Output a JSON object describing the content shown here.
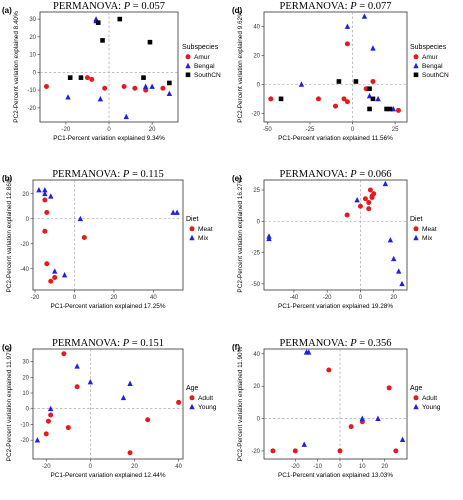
{
  "colors": {
    "red": "#e41a1c",
    "blue": "#1f1fe6",
    "black": "#000000"
  },
  "chart_data": [
    {
      "panel": "(a)",
      "type": "scatter",
      "title_prefix": "PERMANOVA: ",
      "title_p": "P",
      "title_value": " = 0.057",
      "xlabel": "PC1-Percent variation explained 9.34%",
      "ylabel": "PC2-Percent variation explained 8.40%",
      "xlim": [
        -32,
        32
      ],
      "ylim": [
        -28,
        34
      ],
      "xticks": [
        -20,
        0,
        20
      ],
      "yticks": [
        -20,
        -10,
        0,
        10,
        20,
        30
      ],
      "legend": {
        "title": "Subspecies",
        "position": "right"
      },
      "series": [
        {
          "name": "Amur",
          "marker": "circle",
          "color": "red",
          "points": [
            [
              -29,
              -8
            ],
            [
              -10,
              -3
            ],
            [
              -8,
              -4
            ],
            [
              -2,
              -9
            ],
            [
              7,
              -8
            ],
            [
              12,
              -9
            ],
            [
              17,
              -10
            ],
            [
              25,
              -9
            ]
          ]
        },
        {
          "name": "Bengal",
          "marker": "triangle",
          "color": "blue",
          "points": [
            [
              -19,
              -14
            ],
            [
              -6,
              29
            ],
            [
              -6,
              30
            ],
            [
              -4,
              -15
            ],
            [
              8,
              -25
            ],
            [
              17,
              -8
            ],
            [
              20,
              -8
            ],
            [
              28,
              -12
            ]
          ]
        },
        {
          "name": "SouthCN",
          "marker": "square",
          "color": "black",
          "points": [
            [
              -18,
              -3
            ],
            [
              -13,
              -3
            ],
            [
              -5,
              28
            ],
            [
              -3,
              18
            ],
            [
              5,
              30
            ],
            [
              16,
              -3
            ],
            [
              19,
              17
            ],
            [
              28,
              -6
            ]
          ]
        }
      ]
    },
    {
      "panel": "(d)",
      "type": "scatter",
      "title_prefix": "PERMANOVA: ",
      "title_p": "P",
      "title_value": " = 0.077",
      "xlabel": "PC1-Percent variation explained 11.56%",
      "ylabel": "PC2-Percent variation explained 9.62%",
      "xlim": [
        -52,
        32
      ],
      "ylim": [
        -26,
        50
      ],
      "xticks": [
        -50,
        -25,
        0,
        25
      ],
      "yticks": [
        -20,
        0,
        20,
        40
      ],
      "legend": {
        "title": "Subspecies",
        "position": "right"
      },
      "series": [
        {
          "name": "Amur",
          "marker": "circle",
          "color": "red",
          "points": [
            [
              -48,
              -10
            ],
            [
              -20,
              -10
            ],
            [
              -10,
              -15
            ],
            [
              -5,
              -10
            ],
            [
              -3,
              28
            ],
            [
              -3,
              -12
            ],
            [
              8,
              -3
            ],
            [
              12,
              2
            ],
            [
              27,
              -18
            ]
          ]
        },
        {
          "name": "Bengal",
          "marker": "triangle",
          "color": "blue",
          "points": [
            [
              -30,
              0
            ],
            [
              -3,
              40
            ],
            [
              7,
              47
            ],
            [
              10,
              -8
            ],
            [
              12,
              25
            ],
            [
              15,
              -10
            ],
            [
              24,
              -17
            ]
          ]
        },
        {
          "name": "SouthCN",
          "marker": "square",
          "color": "black",
          "points": [
            [
              -42,
              -10
            ],
            [
              -8,
              2
            ],
            [
              2,
              2
            ],
            [
              10,
              -17
            ],
            [
              10,
              -3
            ],
            [
              12,
              -10
            ],
            [
              20,
              -17
            ],
            [
              22,
              -17
            ]
          ]
        }
      ]
    },
    {
      "panel": "(b)",
      "type": "scatter",
      "title_prefix": "PERMANOVA: ",
      "title_p": "P",
      "title_value": " = 0.115",
      "xlabel": "PC1-Percent variation explained 17.25%",
      "ylabel": "PC2-Percent variation explained 12.86%",
      "xlim": [
        -21,
        55
      ],
      "ylim": [
        -57,
        31
      ],
      "xticks": [
        -20,
        0,
        20,
        40
      ],
      "yticks": [
        -40,
        -20,
        0,
        20
      ],
      "legend": {
        "title": "Diet",
        "position": "right"
      },
      "series": [
        {
          "name": "Meat",
          "marker": "circle",
          "color": "red",
          "points": [
            [
              -15,
              15
            ],
            [
              -15,
              -10
            ],
            [
              -14,
              -36
            ],
            [
              -14,
              5
            ],
            [
              -12,
              -50
            ],
            [
              -10,
              -47
            ],
            [
              5,
              -15
            ]
          ]
        },
        {
          "name": "Mix",
          "marker": "triangle",
          "color": "blue",
          "points": [
            [
              -18,
              23
            ],
            [
              -15,
              23
            ],
            [
              -15,
              20
            ],
            [
              -12,
              18
            ],
            [
              -10,
              -42
            ],
            [
              -5,
              -45
            ],
            [
              3,
              0
            ],
            [
              50,
              5
            ],
            [
              52,
              5
            ]
          ]
        }
      ]
    },
    {
      "panel": "(e)",
      "type": "scatter",
      "title_prefix": "PERMANOVA: ",
      "title_p": "P",
      "title_value": " = 0.066",
      "xlabel": "PC1-Percent variation explained 19.28%",
      "ylabel": "PC2-Percent variation explained 16.27%",
      "xlim": [
        -58,
        28
      ],
      "ylim": [
        -55,
        33
      ],
      "xticks": [
        -40,
        -20,
        0,
        20
      ],
      "yticks": [
        -50,
        -25,
        0,
        25
      ],
      "legend": {
        "title": "Diet",
        "position": "right"
      },
      "series": [
        {
          "name": "Meat",
          "marker": "circle",
          "color": "red",
          "points": [
            [
              -8,
              5
            ],
            [
              0,
              12
            ],
            [
              3,
              18
            ],
            [
              5,
              10
            ],
            [
              5,
              15
            ],
            [
              6,
              25
            ],
            [
              7,
              19
            ],
            [
              7,
              20
            ],
            [
              8,
              22
            ]
          ]
        },
        {
          "name": "Mix",
          "marker": "triangle",
          "color": "blue",
          "points": [
            [
              -55,
              -12
            ],
            [
              -55,
              -14
            ],
            [
              -2,
              17
            ],
            [
              15,
              30
            ],
            [
              18,
              -15
            ],
            [
              20,
              -30
            ],
            [
              23,
              -40
            ],
            [
              25,
              -50
            ]
          ]
        }
      ]
    },
    {
      "panel": "(c)",
      "type": "scatter",
      "title_prefix": "PERMANOVA: ",
      "title_p": "P",
      "title_value": " = 0.151",
      "xlabel": "PC1-Percent variation explained 12.44%",
      "ylabel": "PC2-Percent variation explained 11.97%",
      "xlim": [
        -26,
        42
      ],
      "ylim": [
        -32,
        38
      ],
      "xticks": [
        -20,
        0,
        20,
        40
      ],
      "yticks": [
        -20,
        -10,
        0,
        10,
        20,
        30
      ],
      "legend": {
        "title": "Age",
        "position": "right"
      },
      "series": [
        {
          "name": "Adult",
          "marker": "circle",
          "color": "red",
          "points": [
            [
              -20,
              -16
            ],
            [
              -19,
              -8
            ],
            [
              -18,
              -4
            ],
            [
              -12,
              35
            ],
            [
              -10,
              -12
            ],
            [
              -6,
              14
            ],
            [
              18,
              -28
            ],
            [
              26,
              -7
            ],
            [
              40,
              4
            ]
          ]
        },
        {
          "name": "Young",
          "marker": "triangle",
          "color": "blue",
          "points": [
            [
              -24,
              -20
            ],
            [
              -18,
              0
            ],
            [
              -6,
              27
            ],
            [
              0,
              17
            ],
            [
              15,
              7
            ],
            [
              18,
              16
            ]
          ]
        }
      ]
    },
    {
      "panel": "(f)",
      "type": "scatter",
      "title_prefix": "PERMANOVA: ",
      "title_p": "P",
      "title_value": " = 0.356",
      "xlabel": "PC1-Percent variation explained 13.03%",
      "ylabel": "PC2-Percent variation explained 11.90%",
      "xlim": [
        -34,
        30
      ],
      "ylim": [
        -25,
        43
      ],
      "xticks": [
        -20,
        -10,
        0,
        10,
        20
      ],
      "yticks": [
        -20,
        0,
        20,
        40
      ],
      "legend": {
        "title": "Age",
        "position": "right"
      },
      "series": [
        {
          "name": "Adult",
          "marker": "circle",
          "color": "red",
          "points": [
            [
              -30,
              -20
            ],
            [
              -20,
              -20
            ],
            [
              -5,
              30
            ],
            [
              0,
              -20
            ],
            [
              5,
              -5
            ],
            [
              10,
              -2
            ],
            [
              22,
              19
            ],
            [
              25,
              -20
            ]
          ]
        },
        {
          "name": "Young",
          "marker": "triangle",
          "color": "blue",
          "points": [
            [
              -16,
              -16
            ],
            [
              -15,
              41
            ],
            [
              -14,
              41
            ],
            [
              10,
              0
            ],
            [
              17,
              0
            ],
            [
              28,
              -13
            ]
          ]
        }
      ]
    }
  ]
}
